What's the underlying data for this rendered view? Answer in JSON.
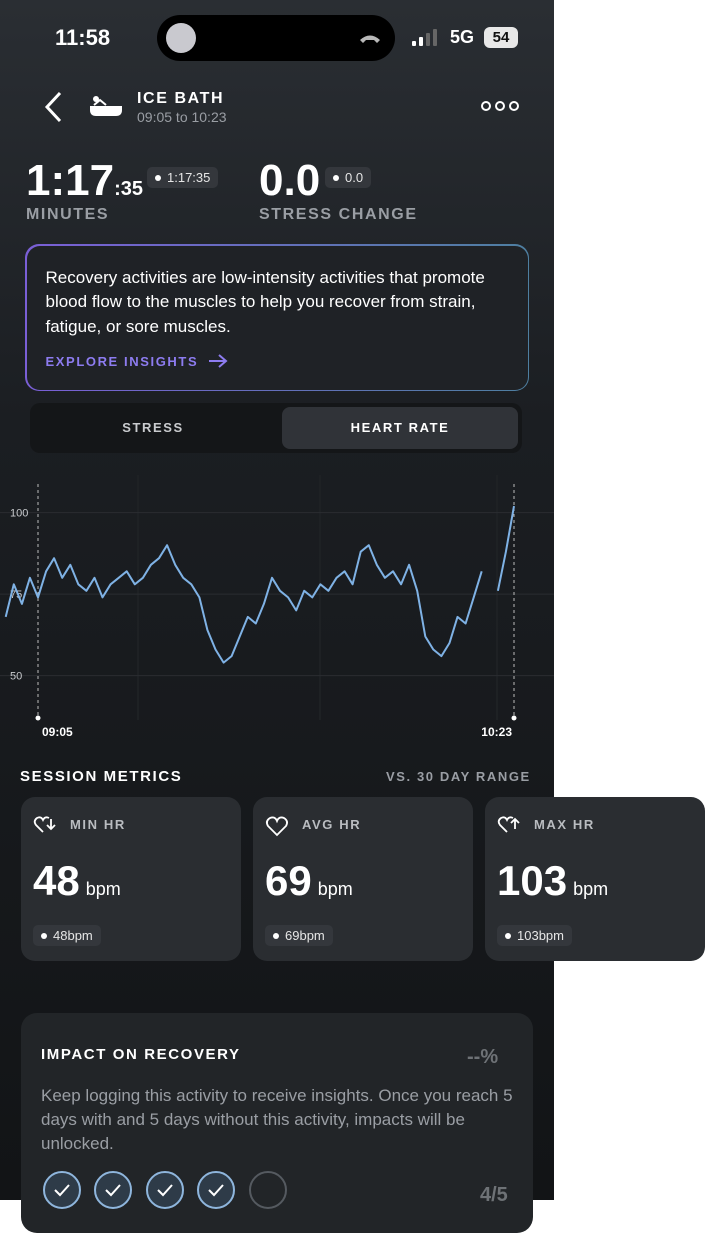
{
  "status_bar": {
    "time": "11:58",
    "network": "5G",
    "battery": "54"
  },
  "header": {
    "title": "ICE BATH",
    "subtitle": "09:05 to 10:23"
  },
  "stats": [
    {
      "value": "1:17",
      "value_small": ":35",
      "badge": "1:17:35",
      "label": "MINUTES"
    },
    {
      "value": "0.0",
      "badge": "0.0",
      "label": "STRESS CHANGE"
    }
  ],
  "info_card": {
    "text": "Recovery activities are low-intensity activities that promote blood flow to the muscles to help you recover from strain, fatigue, or sore muscles.",
    "link": "EXPLORE INSIGHTS"
  },
  "tabs": [
    "STRESS",
    "HEART RATE"
  ],
  "chart_data": {
    "type": "line",
    "categories": [
      null,
      null,
      null,
      null,
      "09:05",
      null,
      null,
      null,
      null,
      null,
      null,
      null,
      null,
      null,
      null,
      null,
      null,
      null,
      null,
      null,
      null,
      null,
      null,
      null,
      null,
      null,
      null,
      null,
      null,
      null,
      null,
      null,
      null,
      null,
      null,
      null,
      null,
      null,
      null,
      null,
      null,
      null,
      null,
      null,
      null,
      null,
      null,
      null,
      null,
      null,
      null,
      null,
      null,
      null,
      null,
      null,
      null,
      null,
      null,
      null,
      null,
      null,
      null,
      "10:23"
    ],
    "series": [
      {
        "name": "Heart rate",
        "color": "#7fb2e5",
        "values": [
          68,
          78,
          72,
          80,
          74,
          82,
          86,
          80,
          84,
          78,
          76,
          80,
          74,
          78,
          80,
          82,
          78,
          80,
          84,
          86,
          90,
          84,
          80,
          78,
          74,
          64,
          58,
          54,
          56,
          62,
          68,
          66,
          72,
          80,
          76,
          74,
          70,
          76,
          74,
          78,
          76,
          80,
          82,
          78,
          88,
          90,
          84,
          80,
          82,
          78,
          84,
          76,
          62,
          58,
          56,
          60,
          68,
          66,
          74,
          82,
          null,
          76,
          88,
          102
        ]
      }
    ],
    "ylim": [
      37,
      110
    ],
    "yticks": [
      50,
      75,
      100
    ],
    "grid": true
  },
  "session_metrics": {
    "title": "SESSION METRICS",
    "subtitle": "VS. 30 DAY RANGE",
    "cards": [
      {
        "label": "MIN HR",
        "value": "48",
        "unit": "bpm",
        "badge": "48bpm"
      },
      {
        "label": "AVG HR",
        "value": "69",
        "unit": "bpm",
        "badge": "69bpm"
      },
      {
        "label": "MAX HR",
        "value": "103",
        "unit": "bpm",
        "badge": "103bpm"
      }
    ]
  },
  "impact": {
    "title": "IMPACT ON RECOVERY",
    "value": "--%",
    "text": "Keep logging this activity to receive insights. Once you reach 5 days with and 5 days without this activity, impacts will be unlocked.",
    "progress": "4/5"
  }
}
